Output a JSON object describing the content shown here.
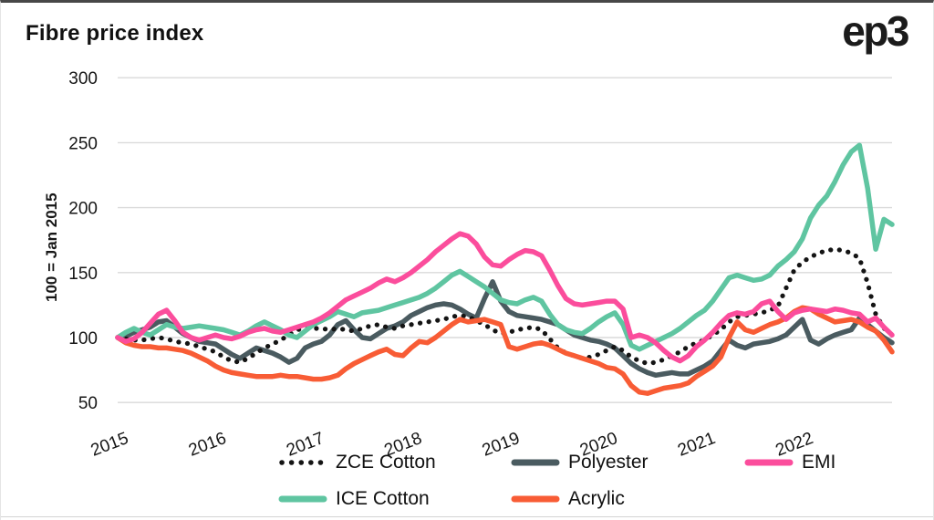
{
  "header": {
    "title": "Fibre price index",
    "logo": "ep3"
  },
  "chart_data": {
    "type": "line",
    "title": "Fibre price index",
    "ylabel": "100 = Jan 2015",
    "x_interval": "monthly",
    "x_start": "2015-01",
    "x_end": "2022-12",
    "x_tick_labels": [
      "2015",
      "2016",
      "2017",
      "2018",
      "2019",
      "2020",
      "2021",
      "2022"
    ],
    "y_ticks": [
      50,
      100,
      150,
      200,
      250,
      300
    ],
    "ylim": [
      40,
      310
    ],
    "grid": true,
    "legend_position": "bottom",
    "colors": {
      "grid": "#dadada",
      "text": "#161616",
      "zce_cotton": "#141414",
      "polyester": "#4a5b60",
      "emi": "#fb4d9c",
      "ice_cotton": "#5fc5a1",
      "acrylic": "#f85c35"
    },
    "series": [
      {
        "name": "ZCE Cotton",
        "style": "dotted",
        "color": "#141414",
        "values": [
          100,
          99,
          98,
          98,
          99,
          100,
          99,
          97,
          96,
          95,
          93,
          91,
          89,
          85,
          82,
          81,
          84,
          88,
          92,
          95,
          98,
          102,
          106,
          107,
          107,
          107,
          106,
          107,
          106,
          105,
          107,
          109,
          110,
          108,
          107,
          109,
          110,
          111,
          112,
          113,
          114,
          116,
          117,
          116,
          113,
          110,
          106,
          103,
          104,
          106,
          107,
          108,
          106,
          99,
          92,
          88,
          86,
          84,
          85,
          87,
          90,
          93,
          90,
          85,
          82,
          80,
          81,
          83,
          86,
          89,
          93,
          96,
          98,
          102,
          106,
          112,
          116,
          117,
          118,
          119,
          121,
          124,
          138,
          152,
          158,
          162,
          165,
          167,
          168,
          167,
          165,
          161,
          142,
          118,
          107,
          104
        ]
      },
      {
        "name": "Polyester",
        "style": "solid",
        "color": "#4a5b60",
        "values": [
          100,
          101,
          104,
          106,
          108,
          112,
          113,
          108,
          103,
          100,
          97,
          96,
          95,
          91,
          87,
          84,
          88,
          92,
          90,
          88,
          85,
          81,
          84,
          92,
          95,
          97,
          102,
          110,
          113,
          106,
          100,
          99,
          103,
          107,
          109,
          112,
          117,
          120,
          123,
          125,
          126,
          125,
          122,
          118,
          115,
          130,
          143,
          128,
          120,
          117,
          116,
          115,
          114,
          112,
          110,
          106,
          102,
          100,
          98,
          97,
          95,
          92,
          86,
          80,
          76,
          73,
          71,
          72,
          73,
          72,
          72,
          75,
          78,
          82,
          90,
          98,
          94,
          92,
          95,
          96,
          97,
          99,
          102,
          108,
          114,
          98,
          95,
          99,
          102,
          104,
          106,
          115,
          110,
          105,
          100,
          96
        ]
      },
      {
        "name": "EMI",
        "style": "solid",
        "color": "#fb4d9c",
        "values": [
          100,
          97,
          99,
          104,
          111,
          118,
          121,
          113,
          104,
          100,
          98,
          100,
          102,
          100,
          99,
          101,
          104,
          106,
          107,
          105,
          104,
          106,
          108,
          110,
          112,
          115,
          119,
          124,
          129,
          132,
          135,
          138,
          142,
          145,
          143,
          146,
          150,
          155,
          160,
          166,
          171,
          176,
          180,
          178,
          172,
          162,
          156,
          155,
          160,
          164,
          167,
          166,
          163,
          152,
          140,
          130,
          126,
          125,
          126,
          127,
          128,
          128,
          122,
          100,
          102,
          100,
          96,
          90,
          85,
          82,
          86,
          93,
          98,
          104,
          111,
          117,
          119,
          118,
          120,
          126,
          128,
          120,
          114,
          119,
          121,
          122,
          121,
          120,
          122,
          121,
          119,
          118,
          112,
          115,
          108,
          102
        ]
      },
      {
        "name": "ICE Cotton",
        "style": "solid",
        "color": "#5fc5a1",
        "values": [
          100,
          104,
          107,
          104,
          102,
          106,
          110,
          108,
          107,
          108,
          109,
          108,
          107,
          106,
          104,
          102,
          105,
          109,
          112,
          109,
          106,
          102,
          100,
          105,
          110,
          113,
          116,
          120,
          118,
          116,
          119,
          120,
          121,
          123,
          125,
          127,
          129,
          131,
          134,
          138,
          143,
          148,
          151,
          147,
          143,
          139,
          134,
          129,
          127,
          126,
          129,
          131,
          128,
          118,
          110,
          106,
          104,
          103,
          107,
          112,
          116,
          119,
          110,
          94,
          91,
          94,
          97,
          100,
          103,
          107,
          112,
          117,
          121,
          128,
          137,
          146,
          148,
          146,
          144,
          145,
          148,
          155,
          160,
          166,
          176,
          192,
          202,
          209,
          220,
          233,
          243,
          248,
          215,
          168,
          191,
          187
        ]
      },
      {
        "name": "Acrylic",
        "style": "solid",
        "color": "#f85c35",
        "values": [
          100,
          96,
          94,
          93,
          93,
          92,
          92,
          91,
          90,
          88,
          85,
          82,
          78,
          75,
          73,
          72,
          71,
          70,
          70,
          70,
          71,
          70,
          70,
          69,
          68,
          68,
          69,
          71,
          76,
          80,
          83,
          86,
          89,
          91,
          87,
          86,
          92,
          97,
          96,
          100,
          105,
          110,
          114,
          112,
          113,
          114,
          112,
          110,
          93,
          91,
          93,
          95,
          96,
          94,
          91,
          88,
          86,
          84,
          82,
          80,
          77,
          76,
          72,
          63,
          58,
          57,
          59,
          61,
          62,
          63,
          65,
          70,
          74,
          78,
          85,
          100,
          112,
          106,
          104,
          107,
          110,
          112,
          115,
          120,
          123,
          122,
          118,
          115,
          112,
          113,
          114,
          112,
          108,
          105,
          98,
          89
        ]
      }
    ]
  }
}
